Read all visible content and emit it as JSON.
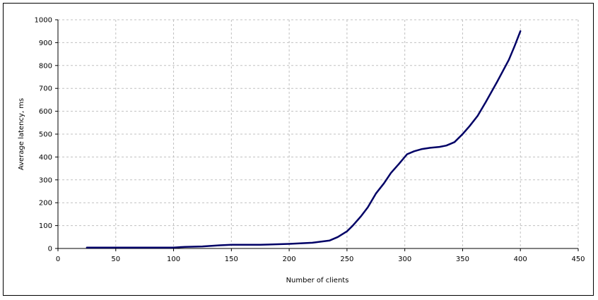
{
  "chart_data": {
    "type": "line",
    "title": "",
    "xlabel": "Number of clients",
    "ylabel": "Average latency, ms",
    "xlim": [
      0,
      450
    ],
    "ylim": [
      0,
      1000
    ],
    "x_ticks": [
      0,
      50,
      100,
      150,
      200,
      250,
      300,
      350,
      400,
      450
    ],
    "y_ticks": [
      0,
      100,
      200,
      300,
      400,
      500,
      600,
      700,
      800,
      900,
      1000
    ],
    "grid": true,
    "legend": "none",
    "line_color": "#000066",
    "grid_color": "#c0c0c0",
    "series": [
      {
        "x": [
          25,
          50,
          75,
          100,
          110,
          125,
          140,
          150,
          175,
          200,
          220,
          235,
          242,
          250,
          255,
          262,
          268,
          275,
          282,
          288,
          295,
          302,
          308,
          315,
          322,
          330,
          336,
          343,
          350,
          356,
          363,
          370,
          380,
          390,
          395,
          400
        ],
        "y": [
          4,
          4,
          4,
          4,
          7,
          9,
          14,
          16,
          16,
          20,
          25,
          35,
          50,
          75,
          100,
          140,
          180,
          240,
          285,
          330,
          370,
          412,
          425,
          435,
          440,
          444,
          450,
          465,
          500,
          535,
          580,
          640,
          730,
          825,
          885,
          950
        ]
      }
    ]
  }
}
